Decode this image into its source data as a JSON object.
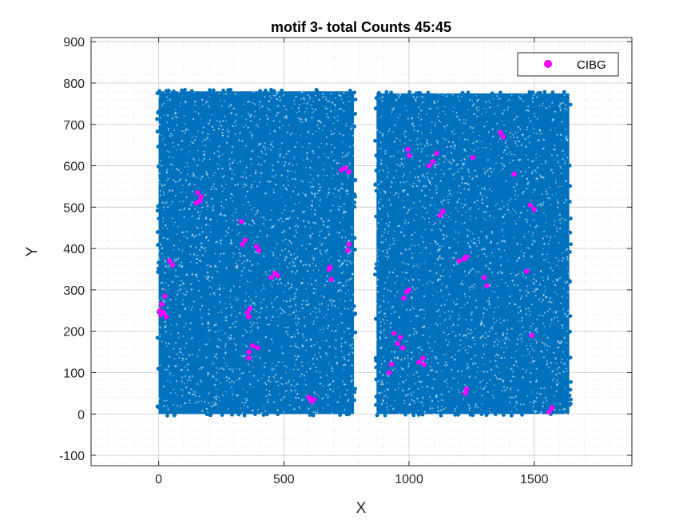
{
  "chart_data": {
    "type": "scatter",
    "title": "motif 3- total Counts 45:45",
    "xlabel": "X",
    "ylabel": "Y",
    "xlim": [
      -270,
      1890
    ],
    "ylim": [
      -125,
      910
    ],
    "xticks": [
      0,
      500,
      1000,
      1500
    ],
    "yticks": [
      -100,
      0,
      100,
      200,
      300,
      400,
      500,
      600,
      700,
      800,
      900
    ],
    "grid": true,
    "minor_grid": true,
    "legend": {
      "location": "top-right",
      "entries": [
        "CIBG"
      ]
    },
    "background_blocks": {
      "color": "#0072BD",
      "regions": [
        {
          "x": [
            0,
            780
          ],
          "y": [
            0,
            780
          ]
        },
        {
          "x": [
            870,
            1640
          ],
          "y": [
            0,
            775
          ]
        }
      ]
    },
    "series": [
      {
        "name": "CIBG",
        "color": "#FF00FF",
        "points": [
          [
            5,
            250
          ],
          [
            12,
            265
          ],
          [
            20,
            245
          ],
          [
            25,
            285
          ],
          [
            30,
            235
          ],
          [
            8,
            240
          ],
          [
            45,
            370
          ],
          [
            55,
            360
          ],
          [
            155,
            535
          ],
          [
            165,
            515
          ],
          [
            170,
            525
          ],
          [
            150,
            510
          ],
          [
            330,
            465
          ],
          [
            335,
            410
          ],
          [
            345,
            420
          ],
          [
            355,
            245
          ],
          [
            365,
            255
          ],
          [
            360,
            235
          ],
          [
            360,
            150
          ],
          [
            375,
            165
          ],
          [
            395,
            160
          ],
          [
            360,
            135
          ],
          [
            390,
            405
          ],
          [
            400,
            395
          ],
          [
            450,
            330
          ],
          [
            465,
            340
          ],
          [
            475,
            335
          ],
          [
            600,
            40
          ],
          [
            610,
            30
          ],
          [
            620,
            35
          ],
          [
            680,
            350
          ],
          [
            690,
            325
          ],
          [
            685,
            355
          ],
          [
            730,
            590
          ],
          [
            745,
            595
          ],
          [
            760,
            585
          ],
          [
            760,
            410
          ],
          [
            755,
            395
          ],
          [
            920,
            100
          ],
          [
            930,
            120
          ],
          [
            940,
            195
          ],
          [
            955,
            170
          ],
          [
            965,
            185
          ],
          [
            975,
            160
          ],
          [
            980,
            280
          ],
          [
            990,
            295
          ],
          [
            1000,
            300
          ],
          [
            995,
            640
          ],
          [
            1000,
            625
          ],
          [
            1040,
            125
          ],
          [
            1055,
            135
          ],
          [
            1060,
            120
          ],
          [
            1080,
            600
          ],
          [
            1095,
            610
          ],
          [
            1110,
            630
          ],
          [
            1125,
            480
          ],
          [
            1135,
            490
          ],
          [
            1200,
            370
          ],
          [
            1220,
            375
          ],
          [
            1230,
            380
          ],
          [
            1225,
            50
          ],
          [
            1230,
            60
          ],
          [
            1255,
            620
          ],
          [
            1300,
            330
          ],
          [
            1310,
            310
          ],
          [
            1365,
            680
          ],
          [
            1375,
            670
          ],
          [
            1420,
            580
          ],
          [
            1470,
            345
          ],
          [
            1485,
            505
          ],
          [
            1500,
            495
          ],
          [
            1490,
            190
          ],
          [
            1560,
            5
          ],
          [
            1570,
            15
          ]
        ]
      }
    ]
  }
}
